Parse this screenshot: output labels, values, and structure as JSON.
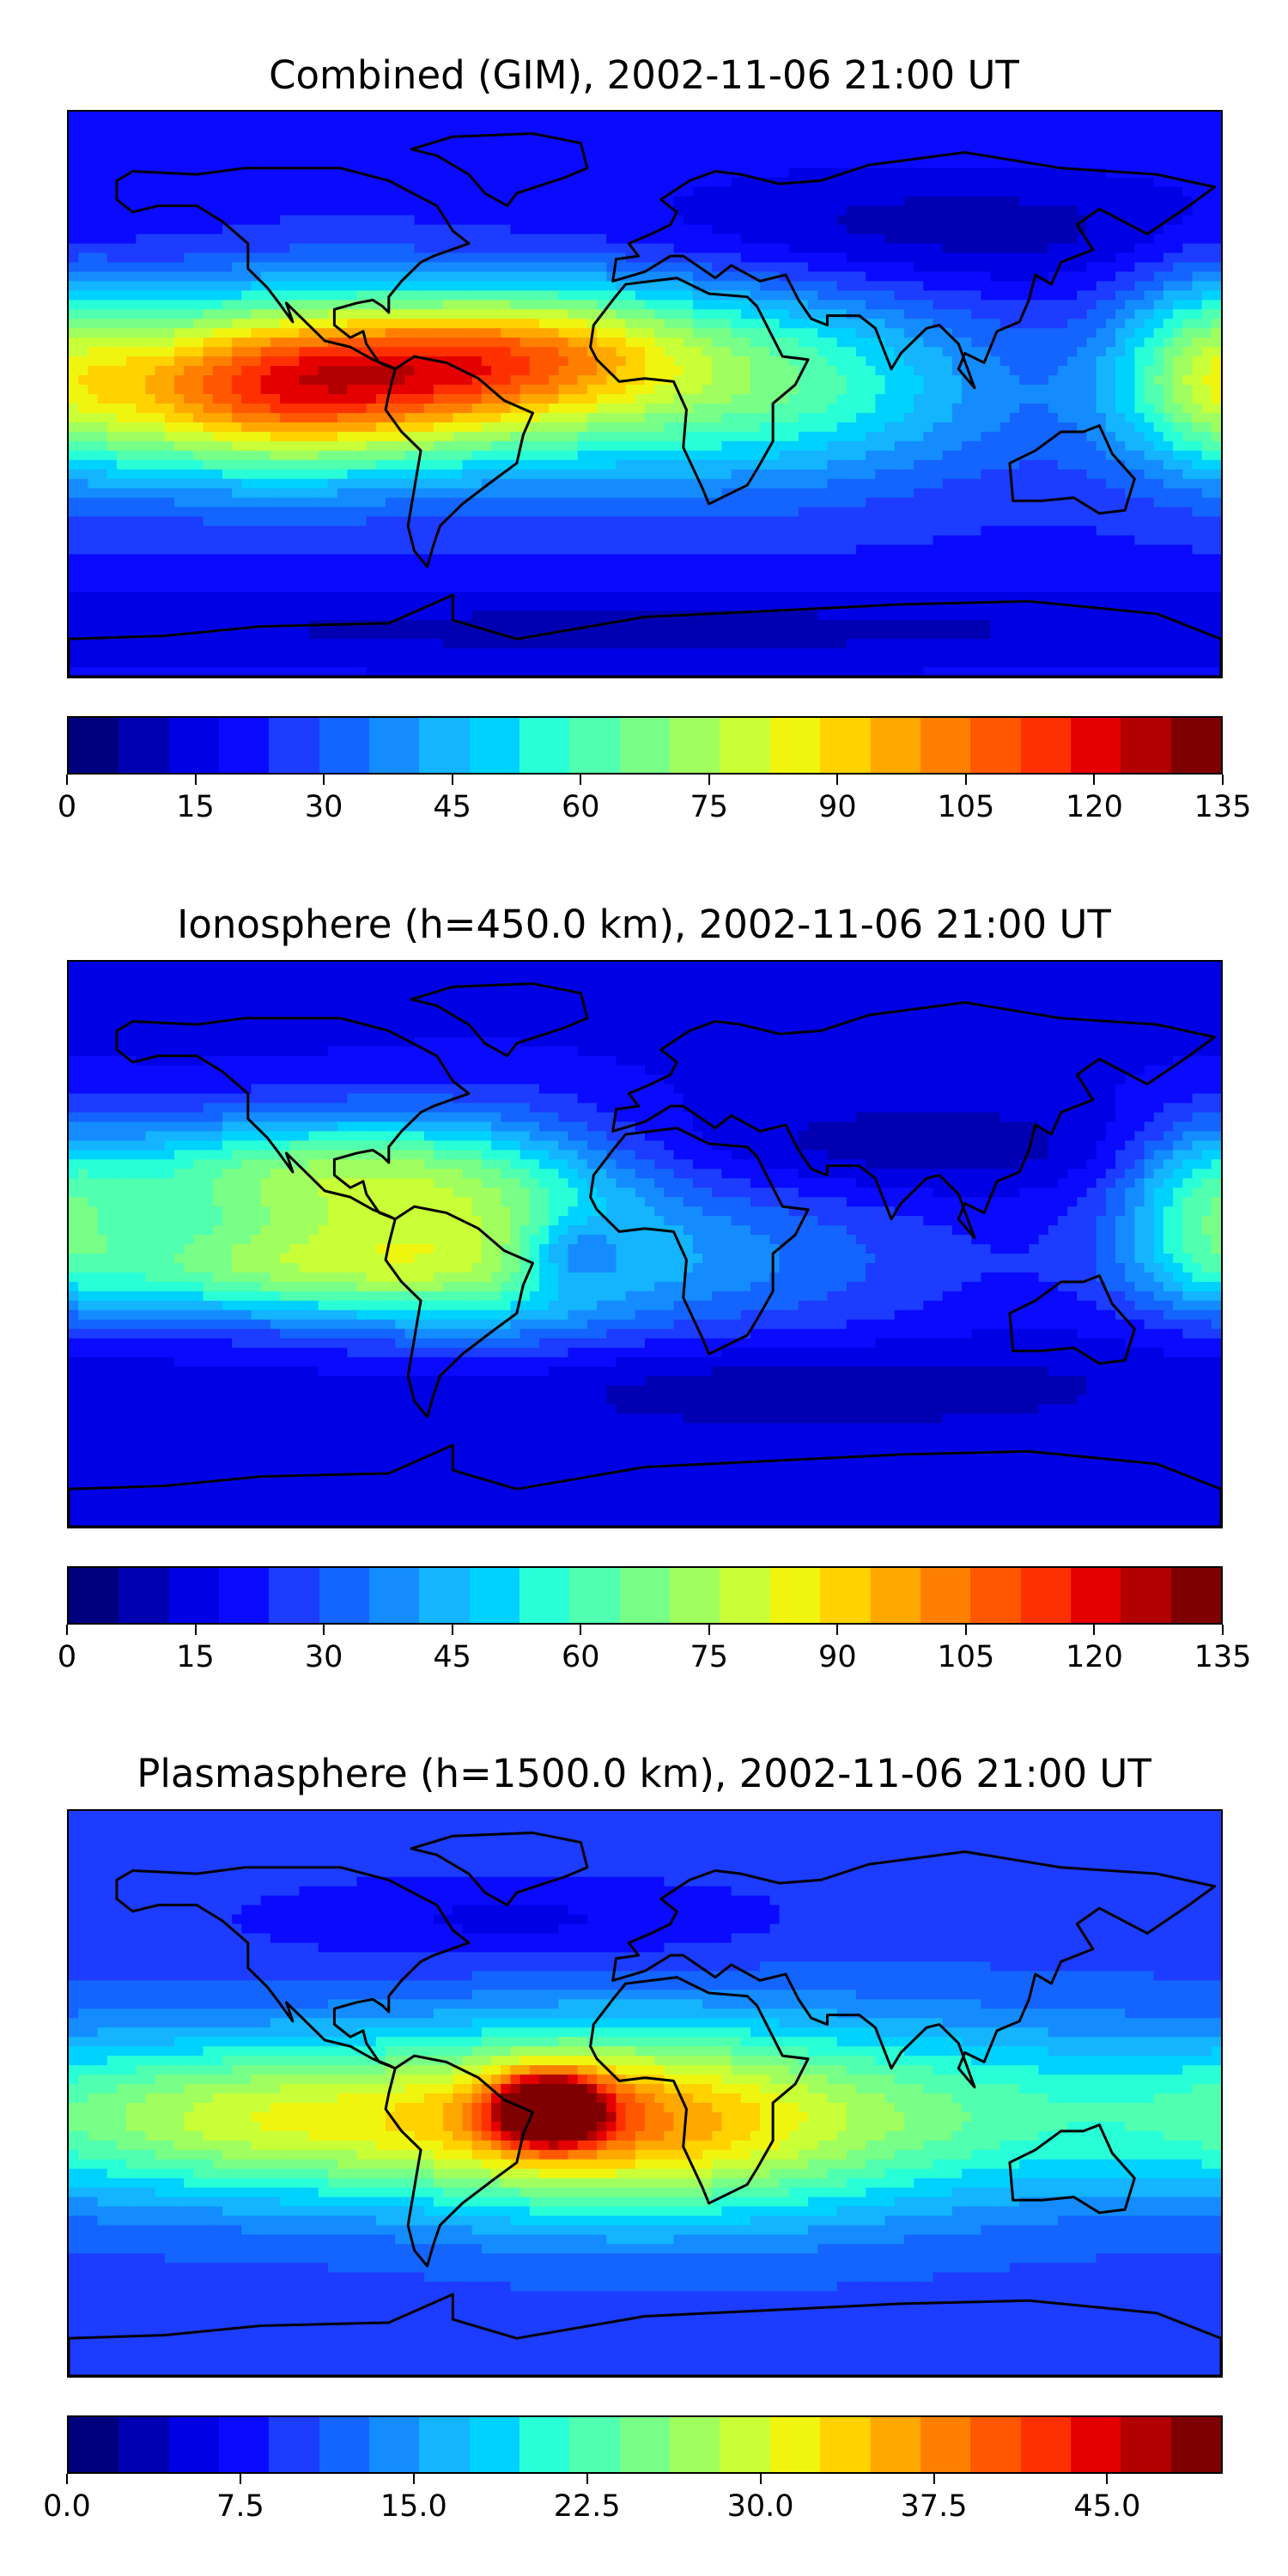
{
  "panels": [
    {
      "title": "Combined (GIM), 2002-11-06 21:00 UT",
      "colorbar": {
        "min": 0,
        "max": 135,
        "ticks": [
          "0",
          "15",
          "30",
          "45",
          "60",
          "75",
          "90",
          "105",
          "120",
          "135"
        ]
      },
      "field": {
        "base": 22,
        "blobs": [
          {
            "lon": -95,
            "lat": 5,
            "amp": 55,
            "sx": 55,
            "sy": 16
          },
          {
            "lon": -125,
            "lat": 8,
            "amp": 30,
            "sx": 40,
            "sy": 22
          },
          {
            "lon": -40,
            "lat": 15,
            "amp": 35,
            "sx": 40,
            "sy": 14
          },
          {
            "lon": 0,
            "lat": 5,
            "amp": 28,
            "sx": 50,
            "sy": 25
          },
          {
            "lon": 60,
            "lat": 2,
            "amp": 22,
            "sx": 40,
            "sy": 20
          },
          {
            "lon": 175,
            "lat": 10,
            "amp": 30,
            "sx": 20,
            "sy": 22
          },
          {
            "lon": -120,
            "lat": -12,
            "amp": 20,
            "sx": 60,
            "sy": 16
          },
          {
            "lon": 90,
            "lat": 52,
            "amp": -14,
            "sx": 80,
            "sy": 14
          },
          {
            "lon": 0,
            "lat": -75,
            "amp": -12,
            "sx": 200,
            "sy": 10
          }
        ]
      }
    },
    {
      "title": "Ionosphere  (h=450.0 km), 2002-11-06 21:00 UT",
      "colorbar": {
        "min": 0,
        "max": 135,
        "ticks": [
          "0",
          "15",
          "30",
          "45",
          "60",
          "75",
          "90",
          "105",
          "120",
          "135"
        ]
      },
      "field": {
        "base": 16,
        "blobs": [
          {
            "lon": -110,
            "lat": 22,
            "amp": 50,
            "sx": 55,
            "sy": 14
          },
          {
            "lon": -115,
            "lat": -8,
            "amp": 48,
            "sx": 55,
            "sy": 12
          },
          {
            "lon": -50,
            "lat": 3,
            "amp": 30,
            "sx": 35,
            "sy": 25
          },
          {
            "lon": -22,
            "lat": -3,
            "amp": -22,
            "sx": 12,
            "sy": 8
          },
          {
            "lon": 30,
            "lat": -5,
            "amp": 18,
            "sx": 50,
            "sy": 20
          },
          {
            "lon": 175,
            "lat": 10,
            "amp": 28,
            "sx": 18,
            "sy": 20
          },
          {
            "lon": 90,
            "lat": 30,
            "amp": -10,
            "sx": 70,
            "sy": 10
          },
          {
            "lon": 40,
            "lat": -45,
            "amp": -10,
            "sx": 80,
            "sy": 10
          }
        ]
      }
    },
    {
      "title": "Plasmasphere (h=1500.0 km), 2002-11-06 21:00 UT",
      "colorbar": {
        "min": 0,
        "max": 50,
        "ticks": [
          "0.0",
          "7.5",
          "15.0",
          "22.5",
          "30.0",
          "37.5",
          "45.0"
        ]
      },
      "field": {
        "base": 10,
        "blobs": [
          {
            "lon": -120,
            "lat": -8,
            "amp": 18,
            "sx": 55,
            "sy": 18
          },
          {
            "lon": -30,
            "lat": -5,
            "amp": 28,
            "sx": 12,
            "sy": 8
          },
          {
            "lon": -20,
            "lat": -8,
            "amp": 16,
            "sx": 45,
            "sy": 20
          },
          {
            "lon": 30,
            "lat": -10,
            "amp": 12,
            "sx": 60,
            "sy": 22
          },
          {
            "lon": 110,
            "lat": -5,
            "amp": 7,
            "sx": 60,
            "sy": 20
          },
          {
            "lon": -40,
            "lat": 55,
            "amp": -4,
            "sx": 60,
            "sy": 10
          }
        ]
      }
    }
  ],
  "colormap": [
    "#00007f",
    "#0000b2",
    "#0000e5",
    "#0a0aff",
    "#1c3cff",
    "#1464ff",
    "#148cff",
    "#14b4ff",
    "#00d2ff",
    "#28ffd7",
    "#50ffaf",
    "#78ff87",
    "#a0ff5f",
    "#c8ff37",
    "#f0f50f",
    "#ffd200",
    "#ffa800",
    "#ff8000",
    "#ff5800",
    "#ff3000",
    "#e50000",
    "#b20000",
    "#7f0000"
  ]
}
